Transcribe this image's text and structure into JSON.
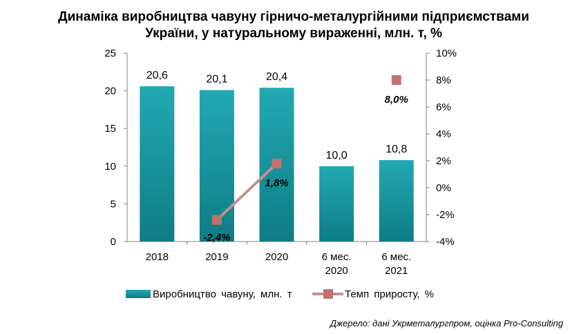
{
  "chart_data": {
    "type": "bar",
    "title_line1": "Динаміка виробництва чавуну гірничо-металургійними підприємствами",
    "title_line2": "України, у натуральному вираженні, млн. т, %",
    "categories": [
      [
        "2018"
      ],
      [
        "2019"
      ],
      [
        "2020"
      ],
      [
        "6 мес.",
        "2020"
      ],
      [
        "6 мес.",
        "2021"
      ]
    ],
    "series": [
      {
        "name": "Виробництво чавуну, млн. т",
        "type": "bar",
        "axis": "left",
        "color": "#1a9aa6",
        "values": [
          20.6,
          20.1,
          20.4,
          10.0,
          10.8
        ],
        "labels": [
          "20,6",
          "20,1",
          "20,4",
          "10,0",
          "10,8"
        ]
      },
      {
        "name": "Темп приросту, %",
        "type": "line",
        "axis": "right",
        "color": "#c38f8c",
        "marker_color": "#c0726f",
        "values": [
          null,
          -2.4,
          1.8,
          null,
          8.0
        ],
        "labels": [
          "",
          "-2,4%",
          "1,8%",
          "",
          "8,0%"
        ],
        "segments": [
          [
            1,
            2
          ]
        ]
      }
    ],
    "y_left": {
      "min": 0,
      "max": 25,
      "step": 5,
      "ticks": [
        "0",
        "5",
        "10",
        "15",
        "20",
        "25"
      ]
    },
    "y_right": {
      "min": -4,
      "max": 10,
      "step": 2,
      "ticks": [
        "-4%",
        "-2%",
        "0%",
        "2%",
        "4%",
        "6%",
        "8%",
        "10%"
      ]
    },
    "grid": false,
    "legend_position": "bottom",
    "source": "Джерело: дані Укрметалургпром, оцінка Pro-Consulting"
  }
}
